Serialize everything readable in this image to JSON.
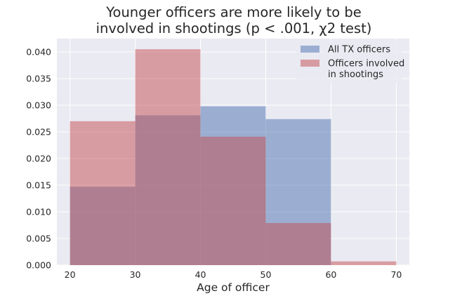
{
  "chart_data": {
    "type": "histogram",
    "title_lines": [
      "Younger officers are more likely to be",
      "involved in shootings (p < .001, χ2 test)"
    ],
    "xlabel": "Age of officer",
    "ylabel": "",
    "xlim": [
      18,
      72
    ],
    "ylim": [
      0,
      0.0425
    ],
    "x_ticks": [
      20,
      30,
      40,
      50,
      60,
      70
    ],
    "y_ticks": [
      0.0,
      0.005,
      0.01,
      0.015,
      0.02,
      0.025,
      0.03,
      0.035,
      0.04
    ],
    "y_tick_labels": [
      "0.000",
      "0.005",
      "0.010",
      "0.015",
      "0.020",
      "0.025",
      "0.030",
      "0.035",
      "0.040"
    ],
    "grid": true,
    "legend_position": "top-right",
    "series": [
      {
        "name": "All TX officers",
        "color": "#4c72b0",
        "bins": [
          [
            20,
            30
          ],
          [
            30,
            40
          ],
          [
            40,
            50
          ],
          [
            50,
            60
          ]
        ],
        "values": [
          0.0147,
          0.0281,
          0.0298,
          0.0274
        ]
      },
      {
        "name": "Officers involved\nin shootings",
        "color": "#c44e52",
        "bins": [
          [
            20,
            30
          ],
          [
            30,
            40
          ],
          [
            40,
            50
          ],
          [
            50,
            60
          ],
          [
            60,
            70
          ]
        ],
        "values": [
          0.027,
          0.0405,
          0.0241,
          0.0079,
          0.0007
        ]
      }
    ]
  }
}
